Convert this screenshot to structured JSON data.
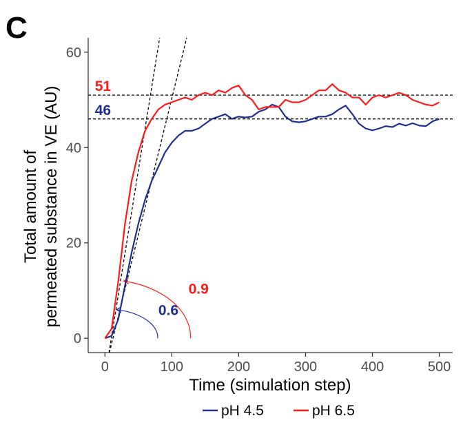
{
  "panel_label": "C",
  "colors": {
    "ph45": "#1f2f8f",
    "ph65": "#ff1a1a",
    "ref": "#000000",
    "axis": "#333333"
  },
  "chart_data": {
    "type": "line",
    "xlabel": "Time (simulation step)",
    "ylabel_line1": "Total amount of",
    "ylabel_line2": "permeated substance in VE (AU)",
    "xlim": [
      -25,
      520
    ],
    "ylim": [
      -3,
      63
    ],
    "x_ticks": [
      "0",
      "100",
      "200",
      "300",
      "400",
      "500"
    ],
    "y_ticks": [
      "0",
      "20",
      "40",
      "60"
    ],
    "grid": false,
    "legend_position": "bottom",
    "series": [
      {
        "name": "pH 4.5",
        "color_key": "ph45",
        "x": [
          0,
          10,
          20,
          30,
          40,
          50,
          60,
          70,
          80,
          90,
          100,
          110,
          120,
          130,
          140,
          150,
          160,
          170,
          180,
          190,
          200,
          210,
          220,
          230,
          240,
          250,
          260,
          270,
          280,
          290,
          300,
          310,
          320,
          330,
          340,
          350,
          360,
          370,
          380,
          390,
          400,
          410,
          420,
          430,
          440,
          450,
          460,
          470,
          480,
          490,
          500
        ],
        "y": [
          0,
          0.5,
          4,
          11,
          18,
          24,
          29,
          33,
          36,
          39,
          41,
          42.5,
          43.5,
          43.5,
          44,
          45,
          46,
          46.5,
          47,
          46,
          46.5,
          46.3,
          46.5,
          47.5,
          48,
          49,
          48.5,
          46.5,
          45.5,
          45.3,
          45.5,
          46,
          46.5,
          46.5,
          47,
          48,
          48.8,
          47,
          45,
          44,
          43.6,
          44,
          44.5,
          44.3,
          45,
          44.6,
          45.1,
          44.6,
          44.5,
          45.5,
          46
        ]
      },
      {
        "name": "pH 6.5",
        "color_key": "ph65",
        "x": [
          0,
          10,
          20,
          30,
          40,
          50,
          60,
          70,
          80,
          90,
          100,
          110,
          120,
          130,
          140,
          150,
          160,
          170,
          180,
          190,
          200,
          210,
          220,
          230,
          240,
          250,
          260,
          270,
          280,
          290,
          300,
          310,
          320,
          330,
          340,
          350,
          360,
          370,
          380,
          390,
          400,
          410,
          420,
          430,
          440,
          450,
          460,
          470,
          480,
          490,
          500
        ],
        "y": [
          0,
          2,
          12,
          24,
          33,
          39,
          43.5,
          46,
          48,
          49,
          49.5,
          50,
          50.5,
          50,
          51,
          51.5,
          51,
          52,
          51.5,
          52.5,
          53,
          51,
          50,
          48,
          48.5,
          48.5,
          48.5,
          50,
          49.5,
          49.5,
          50,
          51,
          52,
          52,
          53.3,
          52,
          51.5,
          50.5,
          50.5,
          49,
          50.5,
          51,
          50.5,
          51,
          51.5,
          51,
          50,
          49.5,
          49,
          48.8,
          49.5
        ]
      }
    ],
    "reference_lines": [
      {
        "type": "hline",
        "y": 51
      },
      {
        "type": "hline",
        "y": 46
      },
      {
        "type": "segment",
        "x1": 5,
        "y1": -4,
        "x2": 83,
        "y2": 64
      },
      {
        "type": "segment",
        "x1": 5,
        "y1": -4,
        "x2": 124,
        "y2": 64
      }
    ],
    "annotations": [
      {
        "text": "51",
        "x": -15,
        "y": 53,
        "color_key": "ph65"
      },
      {
        "text": "46",
        "x": -15,
        "y": 48,
        "color_key": "ph45"
      },
      {
        "text": "0.9",
        "x": 125,
        "y": 10.5,
        "color_key": "ph65"
      },
      {
        "text": "0.6",
        "x": 80,
        "y": 6,
        "color_key": "ph45"
      }
    ],
    "angle_arcs": [
      {
        "label": "0.9",
        "color_key": "ph65",
        "cx": 0,
        "cy": 0,
        "r_x": 128,
        "r_y": 12
      },
      {
        "label": "0.6",
        "color_key": "ph45",
        "cx": 0,
        "cy": 0,
        "r_x": 79,
        "r_y": 6
      }
    ]
  }
}
